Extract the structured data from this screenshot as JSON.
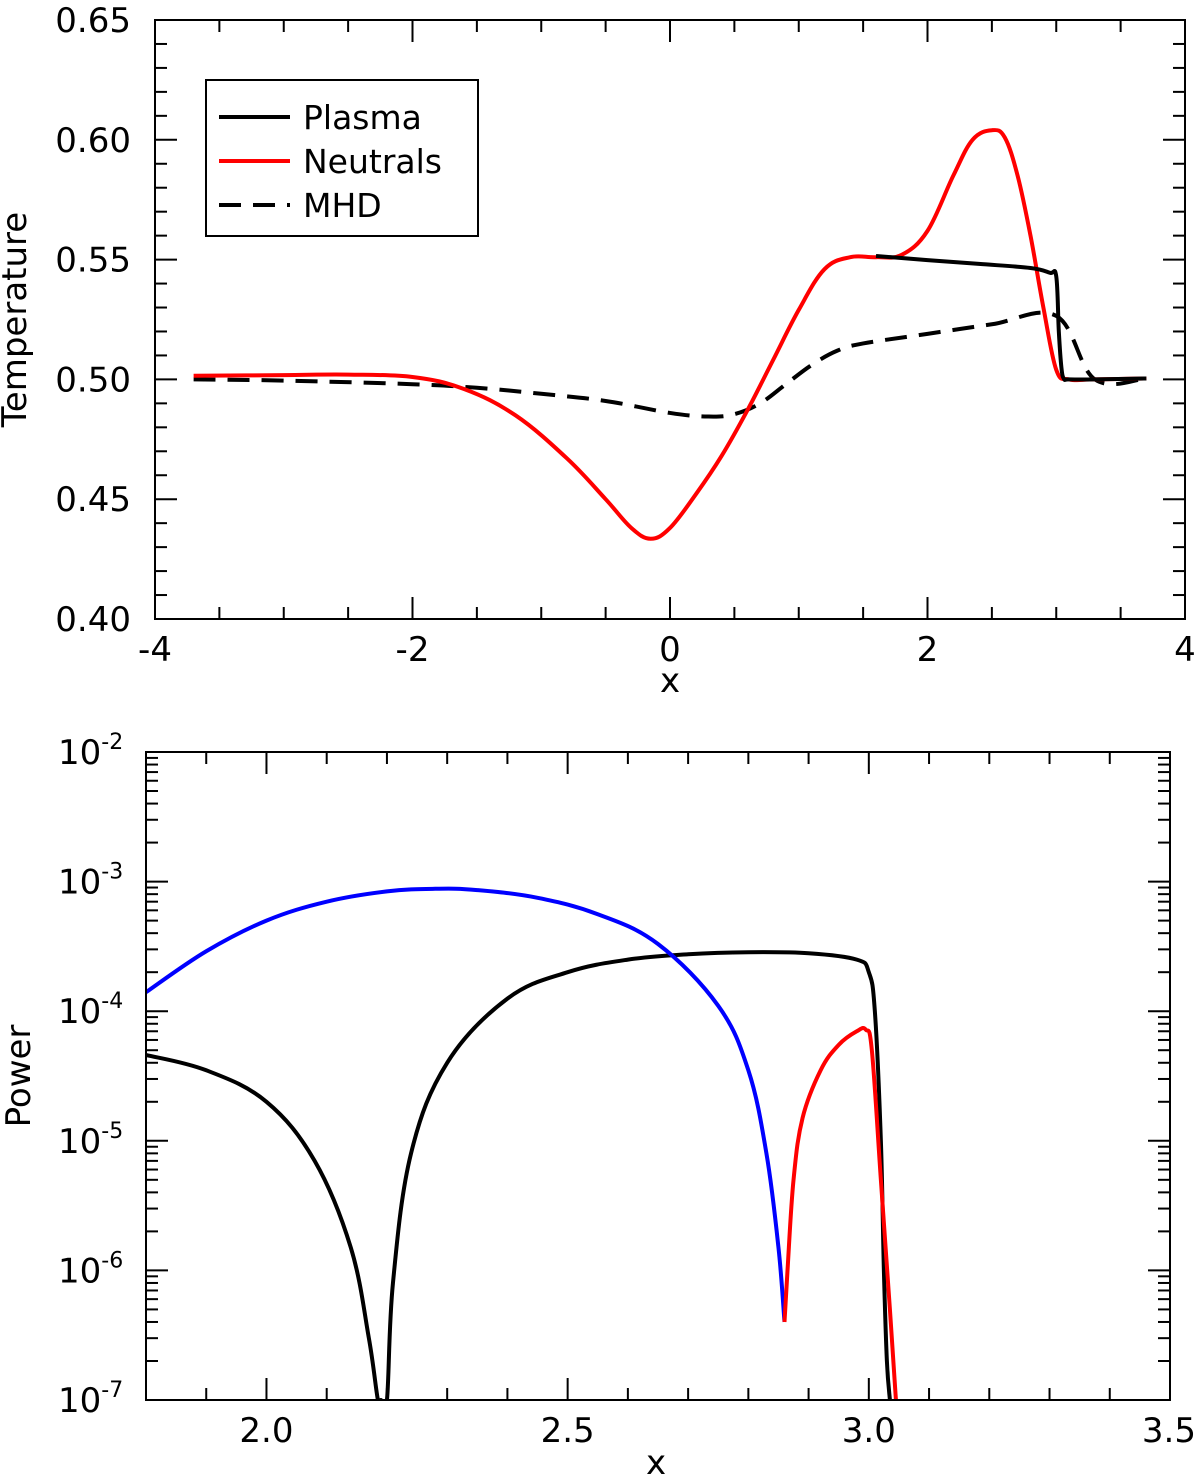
{
  "chart_data": [
    {
      "type": "line",
      "xlabel": "x",
      "ylabel": "Temperature",
      "xlim": [
        -4,
        4
      ],
      "ylim": [
        0.4,
        0.65
      ],
      "xticks": [
        -4,
        -2,
        0,
        2,
        4
      ],
      "xtick_labels": [
        "-4",
        "-2",
        "0",
        "2",
        "4"
      ],
      "yticks": [
        0.4,
        0.45,
        0.5,
        0.55,
        0.6,
        0.65
      ],
      "ytick_labels": [
        "0.40",
        "0.45",
        "0.50",
        "0.55",
        "0.60",
        "0.65"
      ],
      "grid": false,
      "legend": {
        "placement": "top-left",
        "entries": [
          {
            "label": "Plasma",
            "color": "#000000",
            "dash": "solid"
          },
          {
            "label": "Neutrals",
            "color": "#ff0000",
            "dash": "solid"
          },
          {
            "label": "MHD",
            "color": "#000000",
            "dash": "dashed"
          }
        ]
      },
      "series": [
        {
          "name": "Plasma",
          "color": "#000000",
          "dash": "solid",
          "x": [
            1.6,
            2.0,
            2.4,
            2.8,
            2.95,
            3.0,
            3.02,
            3.04,
            3.06,
            3.1,
            3.3,
            3.7
          ],
          "y": [
            0.5515,
            0.5498,
            0.5482,
            0.5465,
            0.5445,
            0.543,
            0.52,
            0.505,
            0.5002,
            0.5,
            0.5,
            0.5004
          ]
        },
        {
          "name": "Neutrals",
          "color": "#ff0000",
          "dash": "solid",
          "x": [
            -3.7,
            -3.0,
            -2.5,
            -2.0,
            -1.6,
            -1.2,
            -0.8,
            -0.5,
            -0.3,
            -0.15,
            0.0,
            0.2,
            0.4,
            0.6,
            0.8,
            1.0,
            1.2,
            1.4,
            1.6,
            1.8,
            2.0,
            2.2,
            2.35,
            2.5,
            2.6,
            2.7,
            2.8,
            2.9,
            3.0,
            3.1,
            3.3,
            3.7
          ],
          "y": [
            0.5015,
            0.5018,
            0.502,
            0.501,
            0.496,
            0.485,
            0.467,
            0.45,
            0.438,
            0.4335,
            0.438,
            0.452,
            0.468,
            0.487,
            0.508,
            0.529,
            0.546,
            0.551,
            0.551,
            0.552,
            0.562,
            0.585,
            0.6,
            0.604,
            0.601,
            0.585,
            0.56,
            0.53,
            0.504,
            0.5,
            0.5,
            0.5004
          ]
        },
        {
          "name": "MHD",
          "color": "#000000",
          "dash": "dashed",
          "x": [
            -3.7,
            -3.0,
            -2.0,
            -1.5,
            -1.0,
            -0.5,
            0.0,
            0.3,
            0.5,
            0.7,
            0.9,
            1.1,
            1.3,
            1.5,
            2.0,
            2.5,
            3.0,
            3.3,
            3.7
          ],
          "y": [
            0.5,
            0.4995,
            0.498,
            0.4965,
            0.494,
            0.491,
            0.486,
            0.4845,
            0.4855,
            0.49,
            0.498,
            0.506,
            0.512,
            0.515,
            0.519,
            0.523,
            0.5265,
            0.5,
            0.5004
          ]
        }
      ]
    },
    {
      "type": "line",
      "xlabel": "x",
      "ylabel": "Power",
      "yscale": "log",
      "xlim": [
        1.8,
        3.5
      ],
      "ylim": [
        1e-07,
        0.01
      ],
      "xticks": [
        2.0,
        2.5,
        3.0,
        3.5
      ],
      "xtick_labels": [
        "2.0",
        "2.5",
        "3.0",
        "3.5"
      ],
      "yticks": [
        1e-07,
        1e-06,
        1e-05,
        0.0001,
        0.001,
        0.01
      ],
      "ytick_labels": [
        {
          "base": "10",
          "exp": "-7"
        },
        {
          "base": "10",
          "exp": "-6"
        },
        {
          "base": "10",
          "exp": "-5"
        },
        {
          "base": "10",
          "exp": "-4"
        },
        {
          "base": "10",
          "exp": "-3"
        },
        {
          "base": "10",
          "exp": "-2"
        }
      ],
      "grid": false,
      "series": [
        {
          "color": "#000000",
          "dash": "solid",
          "x": [
            1.8,
            1.9,
            2.0,
            2.08,
            2.14,
            2.17,
            2.185,
            2.19,
            2.2,
            2.21,
            2.24,
            2.3,
            2.4,
            2.5,
            2.6,
            2.7,
            2.8,
            2.9,
            2.98,
            3.0,
            3.01,
            3.02,
            3.025,
            3.03,
            3.035
          ],
          "y": [
            4.6e-05,
            3.5e-05,
            2e-05,
            7e-06,
            1.5e-06,
            3e-07,
            1e-07,
            1e-07,
            1e-07,
            8e-07,
            8e-06,
            4e-05,
            0.000125,
            0.0002,
            0.00025,
            0.000275,
            0.000285,
            0.00028,
            0.00025,
            0.0002,
            0.0001,
            1e-05,
            1e-06,
            2e-07,
            1e-07
          ]
        },
        {
          "color": "#0000ff",
          "dash": "solid",
          "x": [
            1.8,
            1.9,
            2.0,
            2.1,
            2.2,
            2.28,
            2.35,
            2.45,
            2.55,
            2.65,
            2.75,
            2.8,
            2.83,
            2.85,
            2.86
          ],
          "y": [
            0.00014,
            0.00029,
            0.0005,
            0.0007,
            0.00084,
            0.00088,
            0.00086,
            0.00075,
            0.00056,
            0.00033,
            0.00011,
            3.5e-05,
            8e-06,
            1.5e-06,
            4e-07
          ]
        },
        {
          "color": "#ff0000",
          "dash": "solid",
          "x": [
            2.86,
            2.865,
            2.875,
            2.89,
            2.92,
            2.95,
            2.98,
            2.995,
            3.005,
            3.02,
            3.035,
            3.045
          ],
          "y": [
            4e-07,
            1e-06,
            5e-06,
            1.5e-05,
            3.5e-05,
            5.5e-05,
            7e-05,
            7.2e-05,
            5e-05,
            5e-06,
            5e-07,
            1e-07
          ]
        }
      ]
    }
  ]
}
